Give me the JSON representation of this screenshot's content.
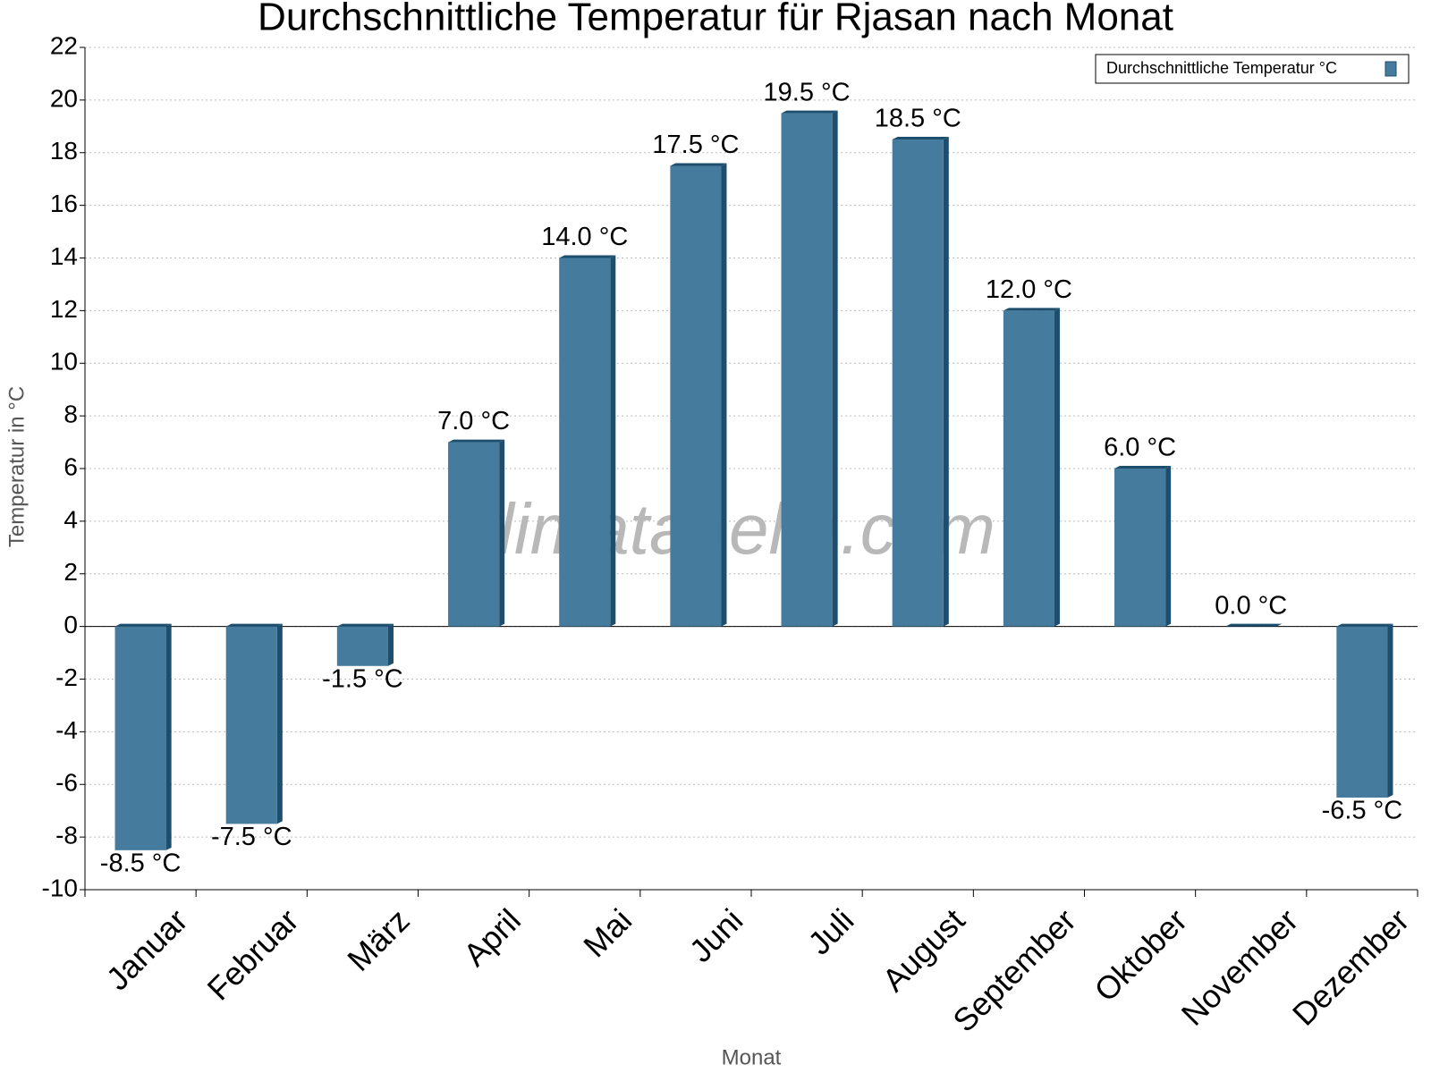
{
  "chart_data": {
    "type": "bar",
    "title": "Durchschnittliche Temperatur für Rjasan nach Monat",
    "watermark": "klimatabelle.com",
    "x_label": "Monat",
    "y_label": "Temperatur in °C",
    "categories": [
      "Januar",
      "Februar",
      "März",
      "April",
      "Mai",
      "Juni",
      "Juli",
      "August",
      "September",
      "Oktober",
      "November",
      "Dezember"
    ],
    "series": [
      {
        "name": "Durchschnittliche Temperatur °C",
        "color": "#457b9d",
        "values": [
          -8.5,
          -7.5,
          -1.5,
          7.0,
          14.0,
          17.5,
          19.5,
          18.5,
          12.0,
          6.0,
          0.0,
          -6.5
        ],
        "value_labels": [
          "-8.5 °C",
          "-7.5 °C",
          "-1.5 °C",
          "7.0 °C",
          "14.0 °C",
          "17.5 °C",
          "19.5 °C",
          "18.5 °C",
          "12.0 °C",
          "6.0 °C",
          "0.0 °C",
          "-6.5 °C"
        ]
      }
    ],
    "ylim": [
      -10,
      22
    ],
    "yticks": [
      -10,
      -8,
      -6,
      -4,
      -2,
      0,
      2,
      4,
      6,
      8,
      10,
      12,
      14,
      16,
      18,
      20,
      22
    ],
    "grid": true,
    "legend": "top-right"
  }
}
